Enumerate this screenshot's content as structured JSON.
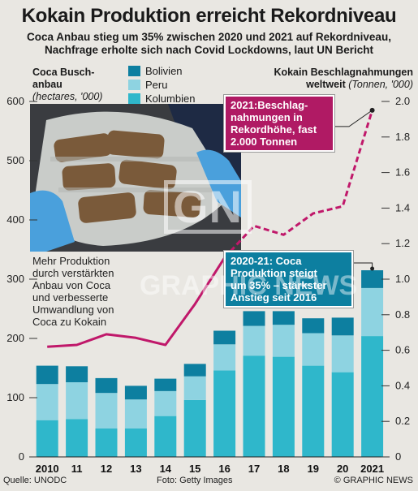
{
  "title": "Kokain Produktion erreicht Rekordniveau",
  "subtitle_line1": "Coca Anbau stieg um 35% zwischen 2020 und 2021 auf Rekordniveau,",
  "subtitle_line2": "Nachfrage erholte sich nach Covid Lockdowns, laut UN Bericht",
  "left_axis_title": {
    "line1a": "Coca Busch-",
    "line2a": "anbau",
    "unit": "(hectares, '000)"
  },
  "right_axis_title": {
    "line1": "Kokain Beschlagnahmungen",
    "line2": "weltweit",
    "unit": "(Tonnen, '000)"
  },
  "callout_seizures": {
    "l1": "2021:Beschlag-",
    "l2": "nahmungen in",
    "l3": "Rekordhöhe, fast",
    "l4": "2.000 Tonnen"
  },
  "callout_production": {
    "l1": "2020-21: Coca",
    "l2": "Produktion steigt",
    "l3": "um 35% – stärkster",
    "l4": "Anstieg seit 2016"
  },
  "note": {
    "l1": "Mehr Produktion",
    "l2": "durch verstärkten",
    "l3": "Anbau von Coca",
    "l4": "und verbesserte",
    "l5": "Umwandlung von",
    "l6": "Coca zu Kokain"
  },
  "source": "Quelle: UNODC",
  "photo_credit": "Foto: Getty Images",
  "copyright": "© GRAPHIC NEWS",
  "watermark_logo": "GN",
  "watermark_text": "GRAPHIC NEWS",
  "colors": {
    "bolivien": "#0d7fa0",
    "peru": "#8ed3e1",
    "kolumbien": "#2fb7cb",
    "line": "#c0186a",
    "callout_production_bg": "#0d7fa0",
    "callout_seizures_bg": "#b01a64"
  },
  "chart_data": {
    "type": "bar",
    "stacked": true,
    "categories": [
      "2010",
      "11",
      "12",
      "13",
      "14",
      "15",
      "16",
      "17",
      "18",
      "19",
      "20",
      "2021"
    ],
    "series": [
      {
        "name": "Kolumbien",
        "values": [
          62,
          64,
          48,
          48,
          69,
          96,
          146,
          171,
          169,
          154,
          143,
          204
        ]
      },
      {
        "name": "Peru",
        "values": [
          61,
          62,
          60,
          49,
          42,
          40,
          44,
          50,
          54,
          55,
          62,
          81
        ]
      },
      {
        "name": "Bolivien",
        "values": [
          31,
          27,
          25,
          23,
          21,
          21,
          23,
          25,
          23,
          25,
          30,
          30
        ]
      }
    ],
    "ylim": [
      0,
      600
    ],
    "yticks": [
      0,
      100,
      200,
      300,
      400,
      500,
      600
    ],
    "line_series": {
      "axis": "right",
      "x": [
        2010,
        2011,
        2012,
        2013,
        2014,
        2015,
        2016,
        2017,
        2018,
        2019,
        2020,
        2021
      ],
      "values": [
        0.62,
        0.63,
        0.69,
        0.67,
        0.63,
        0.86,
        1.12,
        1.3,
        1.25,
        1.37,
        1.41,
        1.95
      ],
      "solid_until_index": 6
    },
    "y2lim": [
      0,
      2.0
    ],
    "y2ticks": [
      "0",
      "0.2",
      "0.4",
      "0.6",
      "0.8",
      "1.0",
      "1.2",
      "1.4",
      "1.6",
      "1.8",
      "2.0"
    ],
    "grid": false,
    "legend": "top-center"
  }
}
